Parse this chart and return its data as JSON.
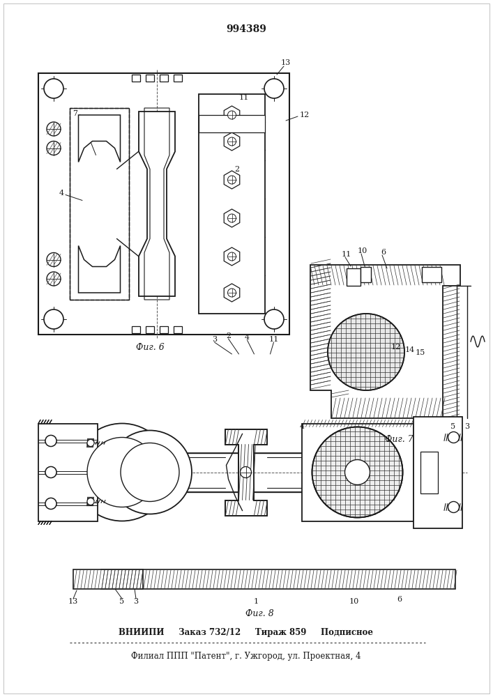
{
  "patent_number": "994389",
  "fig6_caption": "Фиг. 6",
  "fig7_caption": "Фиг. 7",
  "fig8_caption": "Фиг. 8",
  "footer_line1": "ВНИИПИ     Заказ 732/12     Тираж 859     Подписное",
  "footer_line2": "Филиал ППП \"Патент\", г. Ужгород, ул. Проектная, 4",
  "bg_color": "#f5f3ef",
  "line_color": "#1a1a1a",
  "fig_width": 7.07,
  "fig_height": 10.0,
  "dpi": 100
}
